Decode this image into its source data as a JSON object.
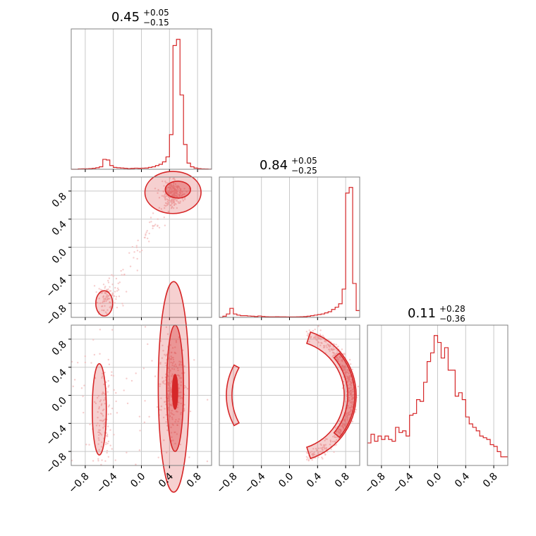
{
  "chart_data": {
    "type": "corner",
    "parameters": [
      {
        "median": "0.45",
        "plus": "+0.05",
        "minus": "−0.15",
        "range": [
          -1.0,
          1.0
        ]
      },
      {
        "median": "0.84",
        "plus": "+0.05",
        "minus": "−0.25",
        "range": [
          -1.0,
          1.0
        ]
      },
      {
        "median": "0.11",
        "plus": "+0.28",
        "minus": "−0.36",
        "range": [
          -1.0,
          1.0
        ]
      }
    ],
    "ticks": [
      -0.8,
      -0.4,
      0.0,
      0.4,
      0.8
    ],
    "tick_labels": [
      "−0.8",
      "−0.4",
      "0.0",
      "0.4",
      "0.8"
    ],
    "grid": true,
    "color": "#d62728",
    "histograms": [
      {
        "x": [
          -1.0,
          -0.95,
          -0.9,
          -0.85,
          -0.8,
          -0.75,
          -0.7,
          -0.65,
          -0.6,
          -0.55,
          -0.5,
          -0.45,
          -0.4,
          -0.35,
          -0.3,
          -0.25,
          -0.2,
          -0.15,
          -0.1,
          -0.05,
          0.0,
          0.05,
          0.1,
          0.15,
          0.2,
          0.25,
          0.3,
          0.35,
          0.4,
          0.45,
          0.5,
          0.55,
          0.6,
          0.65,
          0.7,
          0.75,
          0.8,
          0.85,
          0.9,
          0.95
        ],
        "y": [
          0,
          0,
          0.3,
          0.4,
          0.4,
          0.5,
          0.8,
          1.2,
          2.0,
          8.0,
          7.5,
          3.0,
          1.5,
          1.2,
          1.0,
          0.8,
          0.5,
          0.7,
          0.9,
          0.8,
          0.9,
          1.0,
          1.5,
          2.0,
          3.0,
          4.0,
          6.0,
          10.0,
          28.0,
          100.0,
          105.0,
          60.0,
          20.0,
          5.0,
          2.0,
          1.0,
          0.5,
          0.3,
          0.2,
          0.1
        ]
      },
      {
        "x": [
          -1.0,
          -0.95,
          -0.9,
          -0.85,
          -0.8,
          -0.75,
          -0.7,
          -0.65,
          -0.6,
          -0.55,
          -0.5,
          -0.45,
          -0.4,
          -0.35,
          -0.3,
          -0.25,
          -0.2,
          -0.15,
          -0.1,
          -0.05,
          0.0,
          0.05,
          0.1,
          0.15,
          0.2,
          0.25,
          0.3,
          0.35,
          0.4,
          0.45,
          0.5,
          0.55,
          0.6,
          0.65,
          0.7,
          0.75,
          0.8,
          0.85,
          0.9,
          0.95
        ],
        "y": [
          0,
          1.0,
          3.0,
          8.0,
          3.0,
          2.0,
          1.5,
          1.5,
          1.2,
          1.0,
          0.8,
          1.2,
          0.8,
          0.6,
          0.5,
          0.5,
          0.6,
          0.5,
          0.5,
          0.4,
          0.4,
          0.4,
          0.5,
          0.6,
          0.7,
          1.0,
          1.5,
          2.0,
          2.5,
          3.0,
          4.0,
          5.0,
          7.0,
          9.0,
          12.0,
          25.0,
          110.0,
          115.0,
          30.0,
          6.0
        ]
      },
      {
        "x": [
          -1.0,
          -0.95,
          -0.9,
          -0.85,
          -0.8,
          -0.75,
          -0.7,
          -0.65,
          -0.6,
          -0.55,
          -0.5,
          -0.45,
          -0.4,
          -0.35,
          -0.3,
          -0.25,
          -0.2,
          -0.15,
          -0.1,
          -0.05,
          0.0,
          0.05,
          0.1,
          0.15,
          0.2,
          0.25,
          0.3,
          0.35,
          0.4,
          0.45,
          0.5,
          0.55,
          0.6,
          0.65,
          0.7,
          0.75,
          0.8,
          0.85,
          0.9,
          0.95
        ],
        "y": [
          13,
          18,
          14,
          17,
          15,
          17,
          15,
          14,
          22,
          19,
          20,
          17,
          29,
          30,
          38,
          37,
          48,
          60,
          65,
          75,
          71,
          62,
          68,
          55,
          55,
          40,
          42,
          38,
          28,
          24,
          22,
          20,
          17,
          16,
          15,
          12,
          11,
          8,
          5,
          5
        ]
      }
    ]
  }
}
